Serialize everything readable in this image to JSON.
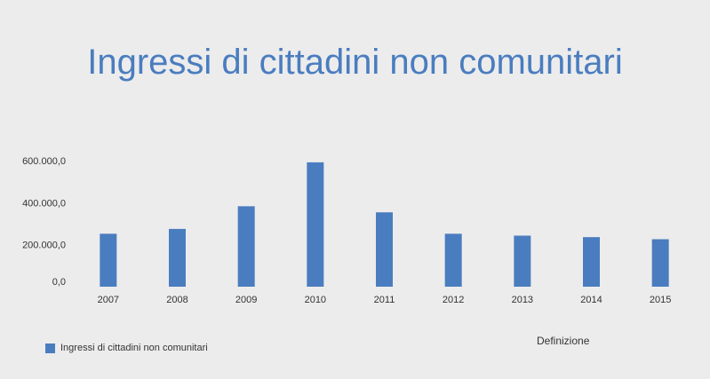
{
  "title": "Ingressi di cittadini non comunitari",
  "definition_link": "Definizione",
  "colors": {
    "bar": "#4a7dbf",
    "title": "#4a7dbf",
    "background": "#ececed"
  },
  "chart_data": {
    "type": "bar",
    "title": "Ingressi di cittadini non comunitari",
    "categories": [
      "2007",
      "2008",
      "2009",
      "2010",
      "2011",
      "2012",
      "2013",
      "2014",
      "2015"
    ],
    "series": [
      {
        "name": "Ingressi di cittadini non comunitari",
        "values": [
          252000,
          275000,
          383000,
          592000,
          354000,
          252000,
          243000,
          236000,
          226000
        ]
      }
    ],
    "yticks": [
      0,
      200000,
      400000,
      600000
    ],
    "ytick_labels": [
      "0,0",
      "200.000,0",
      "400.000,0",
      "600.000,0"
    ],
    "ylim": [
      0,
      600000
    ],
    "legend": "bottom-left",
    "grid": false
  }
}
